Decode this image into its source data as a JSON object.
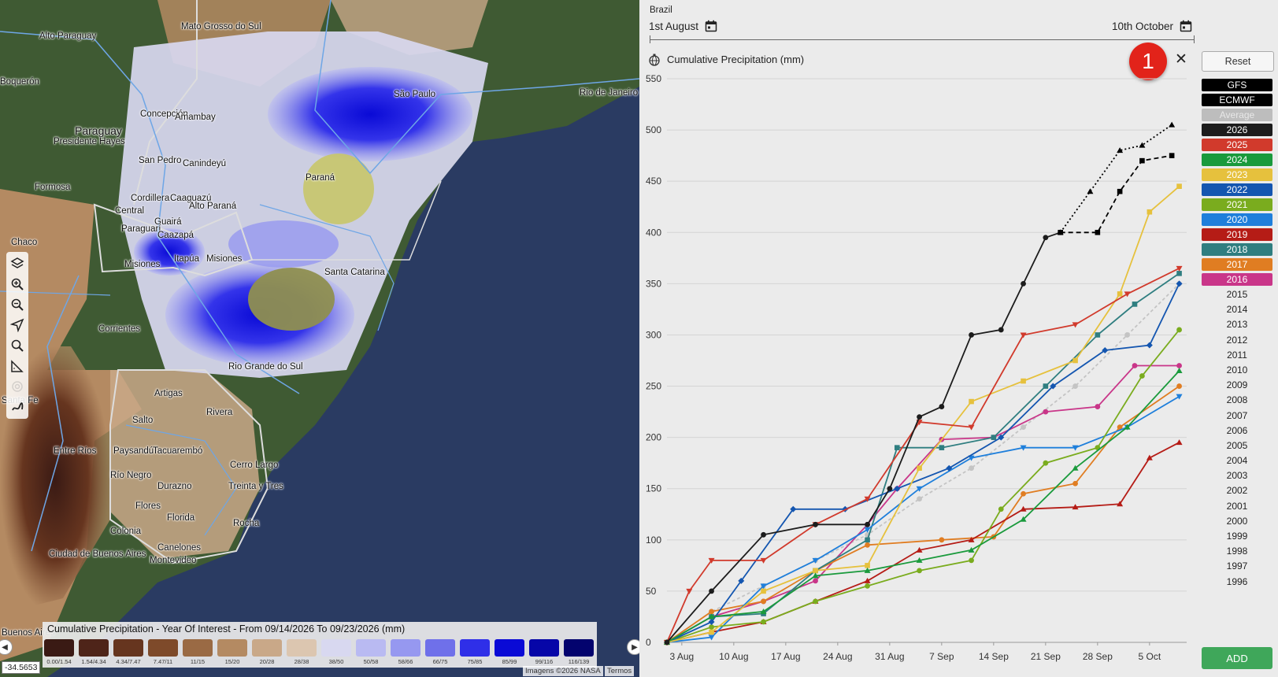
{
  "map": {
    "labels": [
      {
        "text": "Mato Grosso do Sul",
        "big": false
      },
      {
        "text": "Alto Paraguay",
        "big": false
      },
      {
        "text": "Boquerón",
        "big": false
      },
      {
        "text": "São Paulo",
        "big": false
      },
      {
        "text": "Rio de Janeiro",
        "big": false
      },
      {
        "text": "Paraguay",
        "big": true
      },
      {
        "text": "Concepción",
        "big": false
      },
      {
        "text": "Amambay",
        "big": false
      },
      {
        "text": "Presidente Hayes",
        "big": false
      },
      {
        "text": "San Pedro",
        "big": false
      },
      {
        "text": "Canindeyú",
        "big": false
      },
      {
        "text": "Formosa",
        "big": false
      },
      {
        "text": "Cordillera",
        "big": false
      },
      {
        "text": "Caaguazú",
        "big": false
      },
      {
        "text": "Central",
        "big": false
      },
      {
        "text": "Alto Paraná",
        "big": false
      },
      {
        "text": "Guairá",
        "big": false
      },
      {
        "text": "Paraguarí",
        "big": false
      },
      {
        "text": "Caazapá",
        "big": false
      },
      {
        "text": "Paraná",
        "big": false
      },
      {
        "text": "Chaco",
        "big": false
      },
      {
        "text": "Misiones",
        "big": false
      },
      {
        "text": "Itapúa",
        "big": false
      },
      {
        "text": "Misiones",
        "big": false
      },
      {
        "text": "Santa Catarina",
        "big": false
      },
      {
        "text": "Corrientes",
        "big": false
      },
      {
        "text": "Rio Grande do Sul",
        "big": false
      },
      {
        "text": "Santa Fe",
        "big": false
      },
      {
        "text": "Artigas",
        "big": false
      },
      {
        "text": "Salto",
        "big": false
      },
      {
        "text": "Rivera",
        "big": false
      },
      {
        "text": "Entre Ríos",
        "big": false
      },
      {
        "text": "Paysandú",
        "big": false
      },
      {
        "text": "Tacuarembó",
        "big": false
      },
      {
        "text": "Cerro Largo",
        "big": false
      },
      {
        "text": "Río Negro",
        "big": false
      },
      {
        "text": "Durazno",
        "big": false
      },
      {
        "text": "Treinta y Tres",
        "big": false
      },
      {
        "text": "Flores",
        "big": false
      },
      {
        "text": "Florida",
        "big": false
      },
      {
        "text": "Rocha",
        "big": false
      },
      {
        "text": "Colonia",
        "big": false
      },
      {
        "text": "Canelones",
        "big": false
      },
      {
        "text": "Ciudad de Buenos Aires",
        "big": false
      },
      {
        "text": "Montevideo",
        "big": false
      },
      {
        "text": "Buenos Aires",
        "big": false
      }
    ],
    "tools": [
      "layers-icon",
      "zoom-in-icon",
      "zoom-out-icon",
      "navigate-icon",
      "search-icon",
      "measure-icon",
      "target-icon",
      "draw-icon"
    ],
    "legend": {
      "title": "Cumulative Precipitation - Year Of Interest - From 09/14/2026 To 09/23/2026 (mm)",
      "items": [
        {
          "label": "0.00/1.54",
          "color": "#3a1a14"
        },
        {
          "label": "1.54/4.34",
          "color": "#4e2419"
        },
        {
          "label": "4.34/7.47",
          "color": "#66351f"
        },
        {
          "label": "7.47/11",
          "color": "#7e4a2a"
        },
        {
          "label": "11/15",
          "color": "#9a6a44"
        },
        {
          "label": "15/20",
          "color": "#b48a62"
        },
        {
          "label": "20/28",
          "color": "#c9a888"
        },
        {
          "label": "28/38",
          "color": "#dcc6b0"
        },
        {
          "label": "38/50",
          "color": "#d8d8f0"
        },
        {
          "label": "50/58",
          "color": "#b9baf2"
        },
        {
          "label": "58/66",
          "color": "#9698f0"
        },
        {
          "label": "66/75",
          "color": "#6f70ea"
        },
        {
          "label": "75/85",
          "color": "#2f2fe8"
        },
        {
          "label": "85/99",
          "color": "#0a0ad6"
        },
        {
          "label": "99/116",
          "color": "#0606a8"
        },
        {
          "label": "116/139",
          "color": "#03036e"
        }
      ]
    },
    "coord": "-34.5653",
    "attribution": "Imagens ©2026 NASA",
    "terms": "Termos"
  },
  "panel": {
    "region": "Brazil",
    "date_start": "1st August",
    "date_end": "10th October",
    "chart_title": "Cumulative Precipitation (mm)",
    "badge": "1",
    "close": "✕",
    "reset": "Reset",
    "add": "ADD",
    "series_buttons": [
      {
        "label": "GFS",
        "bg": "#000000",
        "fg": "#ffffff"
      },
      {
        "label": "ECMWF",
        "bg": "#000000",
        "fg": "#ffffff"
      },
      {
        "label": "Average",
        "bg": "#bdbdbd",
        "fg": "#e8e8e8"
      },
      {
        "label": "2026",
        "bg": "#1c1c1c",
        "fg": "#ffffff"
      },
      {
        "label": "2025",
        "bg": "#d13a2c",
        "fg": "#ffffff"
      },
      {
        "label": "2024",
        "bg": "#1a9a3c",
        "fg": "#ffffff"
      },
      {
        "label": "2023",
        "bg": "#e6c13d",
        "fg": "#ffffff"
      },
      {
        "label": "2022",
        "bg": "#1456b0",
        "fg": "#ffffff"
      },
      {
        "label": "2021",
        "bg": "#7aac1e",
        "fg": "#ffffff"
      },
      {
        "label": "2020",
        "bg": "#1f7fdb",
        "fg": "#ffffff"
      },
      {
        "label": "2019",
        "bg": "#b51c16",
        "fg": "#ffffff"
      },
      {
        "label": "2018",
        "bg": "#2f7e80",
        "fg": "#ffffff"
      },
      {
        "label": "2017",
        "bg": "#e07d22",
        "fg": "#ffffff"
      },
      {
        "label": "2016",
        "bg": "#c93689",
        "fg": "#ffffff"
      }
    ],
    "plain_years": [
      "2015",
      "2014",
      "2013",
      "2012",
      "2011",
      "2010",
      "2009",
      "2008",
      "2007",
      "2006",
      "2005",
      "2004",
      "2003",
      "2002",
      "2001",
      "2000",
      "1999",
      "1998",
      "1997",
      "1996"
    ]
  },
  "chart_data": {
    "type": "line",
    "title": "Cumulative Precipitation (mm)",
    "xlabel": "",
    "ylabel": "",
    "ylim": [
      0,
      550
    ],
    "xlim": [
      "2026-08-01",
      "2026-10-10"
    ],
    "yticks": [
      0,
      50,
      100,
      150,
      200,
      250,
      300,
      350,
      400,
      450,
      500,
      550
    ],
    "xticks": [
      {
        "label": "3 Aug",
        "date": "2026-08-03"
      },
      {
        "label": "10 Aug",
        "date": "2026-08-10"
      },
      {
        "label": "17 Aug",
        "date": "2026-08-17"
      },
      {
        "label": "24 Aug",
        "date": "2026-08-24"
      },
      {
        "label": "31 Aug",
        "date": "2026-08-31"
      },
      {
        "label": "7 Sep",
        "date": "2026-09-07"
      },
      {
        "label": "14 Sep",
        "date": "2026-09-14"
      },
      {
        "label": "21 Sep",
        "date": "2026-09-21"
      },
      {
        "label": "28 Sep",
        "date": "2026-09-28"
      },
      {
        "label": "5 Oct",
        "date": "2026-10-05"
      }
    ],
    "grid": true,
    "series": [
      {
        "name": "Average",
        "color": "#c4c4c4",
        "marker": "circle",
        "dash": "4,3",
        "x": [
          "2026-08-01",
          "2026-08-07",
          "2026-08-14",
          "2026-08-21",
          "2026-08-28",
          "2026-09-04",
          "2026-09-11",
          "2026-09-18",
          "2026-09-25",
          "2026-10-02",
          "2026-10-09"
        ],
        "y": [
          0,
          30,
          55,
          80,
          105,
          140,
          170,
          210,
          250,
          300,
          350
        ]
      },
      {
        "name": "2016",
        "color": "#c93689",
        "marker": "circle",
        "x": [
          "2026-08-01",
          "2026-08-07",
          "2026-08-14",
          "2026-08-21",
          "2026-08-28",
          "2026-09-01",
          "2026-09-07",
          "2026-09-14",
          "2026-09-21",
          "2026-09-28",
          "2026-10-03",
          "2026-10-09"
        ],
        "y": [
          0,
          25,
          40,
          60,
          115,
          150,
          198,
          200,
          225,
          230,
          270,
          270
        ]
      },
      {
        "name": "2017",
        "color": "#e07d22",
        "marker": "circle",
        "x": [
          "2026-08-01",
          "2026-08-07",
          "2026-08-14",
          "2026-08-21",
          "2026-08-28",
          "2026-09-07",
          "2026-09-14",
          "2026-09-18",
          "2026-09-25",
          "2026-10-01",
          "2026-10-09"
        ],
        "y": [
          0,
          30,
          40,
          70,
          95,
          100,
          103,
          145,
          155,
          210,
          250
        ]
      },
      {
        "name": "2018",
        "color": "#2f7e80",
        "marker": "square",
        "x": [
          "2026-08-01",
          "2026-08-07",
          "2026-08-14",
          "2026-08-21",
          "2026-08-28",
          "2026-09-01",
          "2026-09-07",
          "2026-09-14",
          "2026-09-21",
          "2026-09-28",
          "2026-10-03",
          "2026-10-09"
        ],
        "y": [
          0,
          25,
          28,
          70,
          100,
          190,
          190,
          200,
          250,
          300,
          330,
          360
        ]
      },
      {
        "name": "2019",
        "color": "#b51c16",
        "marker": "triangle",
        "x": [
          "2026-08-01",
          "2026-08-07",
          "2026-08-14",
          "2026-08-21",
          "2026-08-28",
          "2026-09-04",
          "2026-09-11",
          "2026-09-18",
          "2026-09-25",
          "2026-10-01",
          "2026-10-05",
          "2026-10-09"
        ],
        "y": [
          0,
          10,
          20,
          40,
          60,
          90,
          100,
          130,
          132,
          135,
          180,
          195
        ]
      },
      {
        "name": "2020",
        "color": "#1f7fdb",
        "marker": "triangle-down",
        "x": [
          "2026-08-01",
          "2026-08-07",
          "2026-08-14",
          "2026-08-21",
          "2026-08-28",
          "2026-09-04",
          "2026-09-11",
          "2026-09-18",
          "2026-09-25",
          "2026-10-02",
          "2026-10-09"
        ],
        "y": [
          0,
          5,
          55,
          80,
          110,
          150,
          180,
          190,
          190,
          210,
          240
        ]
      },
      {
        "name": "2021",
        "color": "#7aac1e",
        "marker": "circle",
        "x": [
          "2026-08-01",
          "2026-08-07",
          "2026-08-14",
          "2026-08-21",
          "2026-08-28",
          "2026-09-04",
          "2026-09-11",
          "2026-09-15",
          "2026-09-21",
          "2026-09-28",
          "2026-10-04",
          "2026-10-09"
        ],
        "y": [
          0,
          15,
          20,
          40,
          55,
          70,
          80,
          130,
          175,
          190,
          260,
          305
        ]
      },
      {
        "name": "2022",
        "color": "#1456b0",
        "marker": "diamond",
        "x": [
          "2026-08-01",
          "2026-08-07",
          "2026-08-11",
          "2026-08-18",
          "2026-08-25",
          "2026-09-01",
          "2026-09-08",
          "2026-09-15",
          "2026-09-22",
          "2026-09-29",
          "2026-10-05",
          "2026-10-09"
        ],
        "y": [
          0,
          20,
          60,
          130,
          130,
          150,
          170,
          200,
          250,
          285,
          290,
          350
        ]
      },
      {
        "name": "2023",
        "color": "#e6c13d",
        "marker": "square",
        "x": [
          "2026-08-01",
          "2026-08-07",
          "2026-08-14",
          "2026-08-21",
          "2026-08-28",
          "2026-09-04",
          "2026-09-11",
          "2026-09-18",
          "2026-09-25",
          "2026-10-01",
          "2026-10-05",
          "2026-10-09"
        ],
        "y": [
          0,
          10,
          50,
          70,
          75,
          170,
          235,
          255,
          275,
          340,
          420,
          445
        ]
      },
      {
        "name": "2024",
        "color": "#1a9a3c",
        "marker": "triangle",
        "x": [
          "2026-08-01",
          "2026-08-07",
          "2026-08-14",
          "2026-08-21",
          "2026-08-28",
          "2026-09-04",
          "2026-09-11",
          "2026-09-18",
          "2026-09-25",
          "2026-10-02",
          "2026-10-09"
        ],
        "y": [
          0,
          25,
          30,
          65,
          70,
          80,
          90,
          120,
          170,
          210,
          265
        ]
      },
      {
        "name": "2025",
        "color": "#d13a2c",
        "marker": "triangle-down",
        "x": [
          "2026-08-01",
          "2026-08-04",
          "2026-08-07",
          "2026-08-14",
          "2026-08-21",
          "2026-08-28",
          "2026-09-04",
          "2026-09-11",
          "2026-09-18",
          "2026-09-25",
          "2026-10-02",
          "2026-10-09"
        ],
        "y": [
          0,
          50,
          80,
          80,
          115,
          140,
          215,
          210,
          300,
          310,
          340,
          365
        ]
      },
      {
        "name": "2026",
        "color": "#1c1c1c",
        "marker": "circle",
        "x": [
          "2026-08-01",
          "2026-08-07",
          "2026-08-14",
          "2026-08-21",
          "2026-08-28",
          "2026-08-31",
          "2026-09-04",
          "2026-09-07",
          "2026-09-11",
          "2026-09-15",
          "2026-09-18",
          "2026-09-21",
          "2026-09-23"
        ],
        "y": [
          0,
          50,
          105,
          115,
          115,
          150,
          220,
          230,
          300,
          305,
          350,
          395,
          400
        ]
      },
      {
        "name": "ECMWF",
        "color": "#000000",
        "marker": "square",
        "dash": "6,4",
        "x": [
          "2026-09-23",
          "2026-09-28",
          "2026-10-01",
          "2026-10-04",
          "2026-10-08"
        ],
        "y": [
          400,
          400,
          440,
          470,
          475
        ]
      },
      {
        "name": "GFS",
        "color": "#000000",
        "marker": "triangle",
        "dash": "2,3",
        "x": [
          "2026-09-23",
          "2026-09-27",
          "2026-10-01",
          "2026-10-04",
          "2026-10-08"
        ],
        "y": [
          400,
          440,
          480,
          485,
          505
        ]
      }
    ]
  }
}
